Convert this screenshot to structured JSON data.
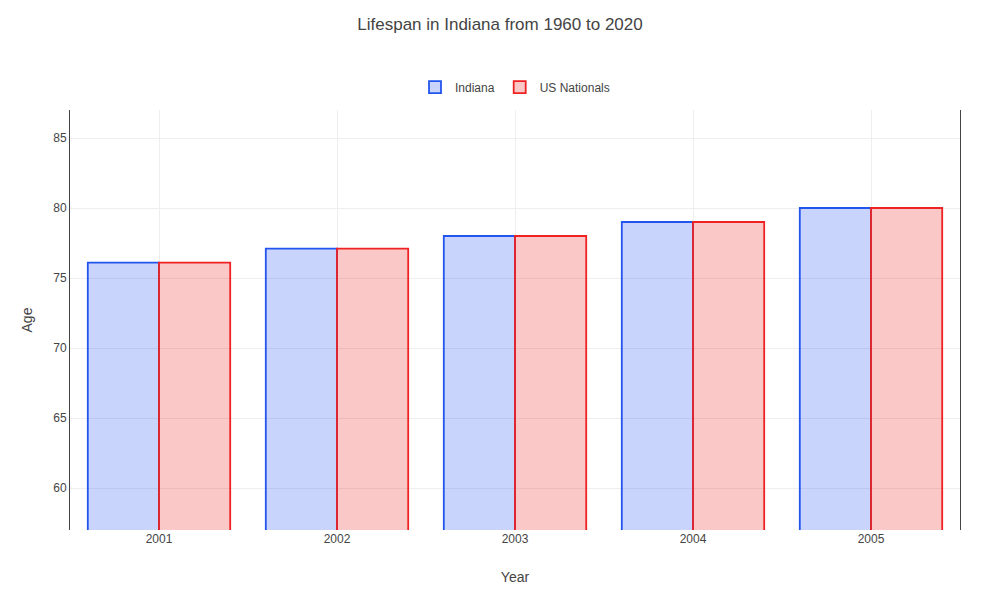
{
  "chart_data": {
    "type": "bar",
    "title": "Lifespan in Indiana from 1960 to 2020",
    "x_label": "Year",
    "y_label": "Age",
    "categories": [
      "2001",
      "2002",
      "2003",
      "2004",
      "2005"
    ],
    "series": [
      {
        "name": "Indiana",
        "color": "#2255EE",
        "values": [
          76.1,
          77.1,
          78.0,
          79.0,
          80.0
        ]
      },
      {
        "name": "US Nationals",
        "color": "#EE2222",
        "values": [
          76.1,
          77.1,
          78.0,
          79.0,
          80.0
        ]
      }
    ],
    "ylim": [
      57,
      87
    ],
    "yticks": [
      60,
      65,
      70,
      75,
      80,
      85
    ],
    "grid": true,
    "legend": "top"
  }
}
